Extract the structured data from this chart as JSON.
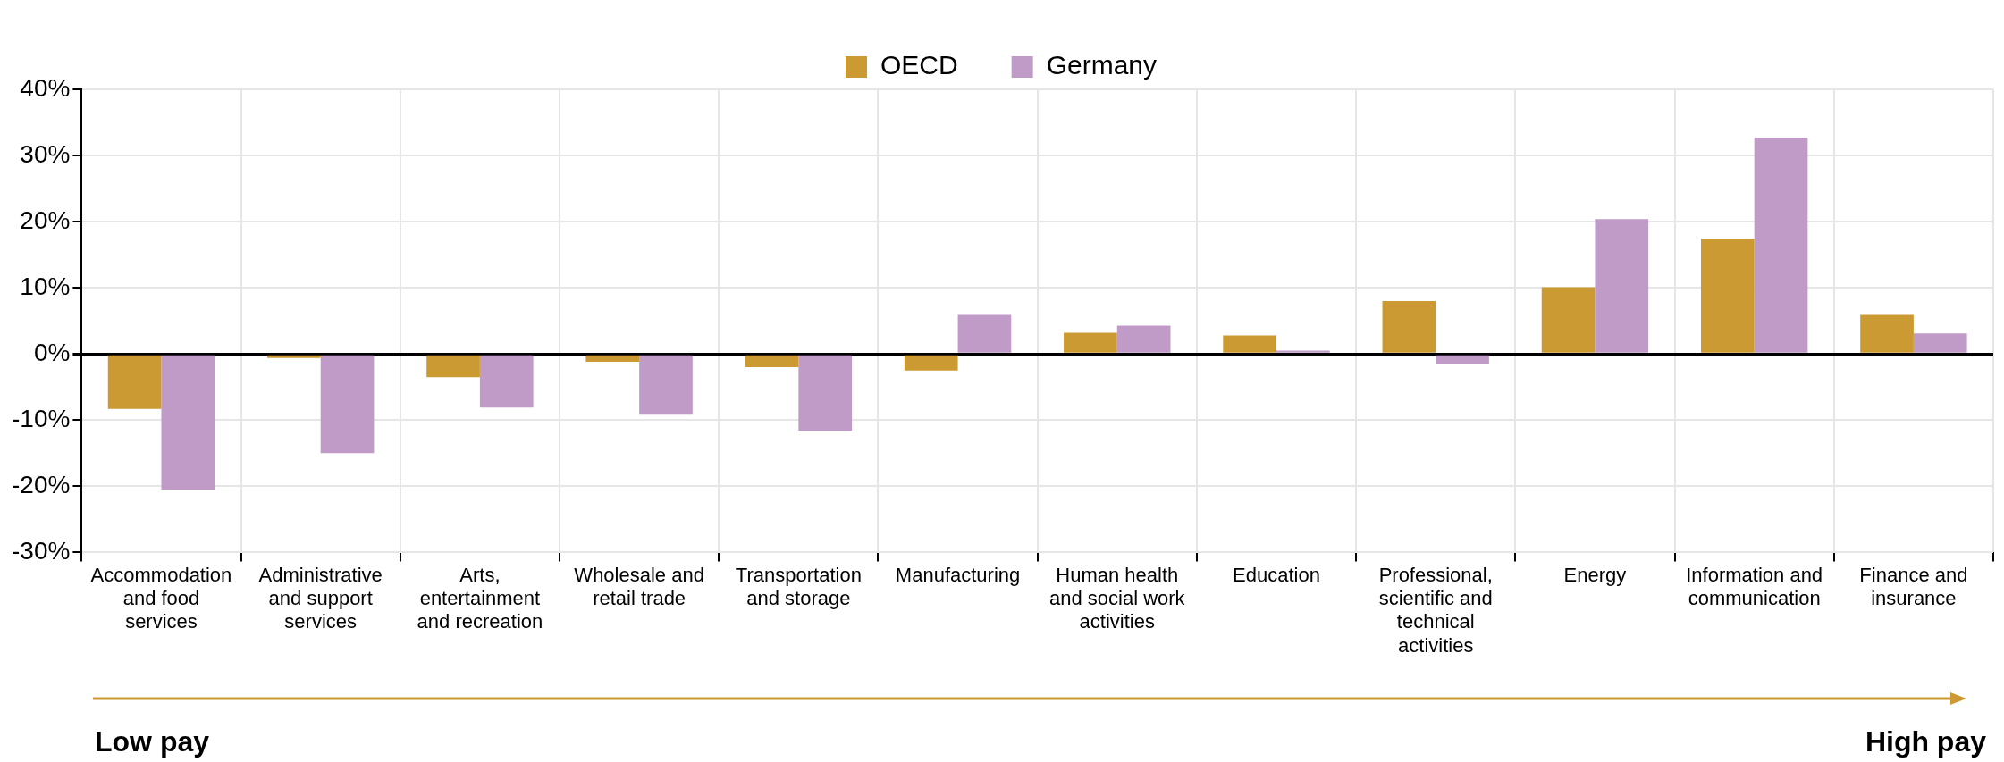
{
  "chart_data": {
    "type": "bar",
    "categories": [
      "Accommodation and food services",
      "Administrative and support services",
      "Arts, entertainment and recreation",
      "Wholesale and retail trade",
      "Transportation and storage",
      "Manufacturing",
      "Human health and social work activities",
      "Education",
      "Professional, scientific and technical activities",
      "Energy",
      "Information and communication",
      "Finance and insurance"
    ],
    "series": [
      {
        "name": "OECD",
        "color": "#cc9a33",
        "values": [
          -8.3,
          -0.6,
          -3.5,
          -1.2,
          -2.0,
          -2.5,
          3.2,
          2.8,
          8.0,
          10.1,
          17.4,
          5.9
        ]
      },
      {
        "name": "Germany",
        "color": "#c09bc8",
        "values": [
          -20.5,
          -15.0,
          -8.1,
          -9.2,
          -11.6,
          5.9,
          4.3,
          0.5,
          -1.6,
          20.4,
          32.7,
          3.1
        ]
      }
    ],
    "ylim": [
      -30,
      40
    ],
    "yticks": [
      {
        "value": -30,
        "label": "-30%"
      },
      {
        "value": -20,
        "label": "-20%"
      },
      {
        "value": -10,
        "label": "-10%"
      },
      {
        "value": 0,
        "label": "0%"
      },
      {
        "value": 10,
        "label": "10%"
      },
      {
        "value": 20,
        "label": "20%"
      },
      {
        "value": 30,
        "label": "30%"
      },
      {
        "value": 40,
        "label": "40%"
      }
    ],
    "grid": true,
    "legend": "top",
    "annotations": [
      "Low pay",
      "High pay"
    ]
  }
}
